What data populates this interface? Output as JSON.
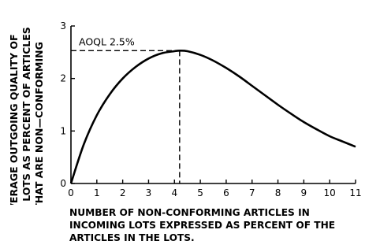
{
  "chart_data": {
    "type": "line",
    "title": "",
    "ylabel_lines": [
      "AVERAGE OUTGOING QUALITY OF",
      "ALL LOTS AS PERCENT OF ARTICLES",
      "THAT ARE NON—CONFORMING"
    ],
    "xlabel_lines": [
      "NUMBER OF NON-CONFORMING ARTICLES IN",
      "INCOMING LOTS EXPRESSED AS PERCENT OF THE",
      "ARTICLES IN THE LOTS."
    ],
    "xlim": [
      0,
      11
    ],
    "ylim": [
      0,
      3
    ],
    "xticks": [
      "0",
      "1",
      "2",
      "3",
      "4",
      "5",
      "6",
      "7",
      "8",
      "9",
      "10",
      "11"
    ],
    "yticks": [
      "0",
      "1",
      "2",
      "3"
    ],
    "grid": false,
    "annotation": {
      "text": "AOQL 2.5%",
      "x": 4.2,
      "y": 2.53
    },
    "series": [
      {
        "x": [
          0,
          0.5,
          1,
          1.5,
          2,
          2.5,
          3,
          3.5,
          4,
          4.2,
          4.5,
          5,
          5.5,
          6,
          6.5,
          7,
          7.5,
          8,
          8.5,
          9,
          9.5,
          10,
          10.5,
          11
        ],
        "y": [
          0,
          0.75,
          1.3,
          1.7,
          2.0,
          2.22,
          2.38,
          2.48,
          2.52,
          2.53,
          2.52,
          2.45,
          2.34,
          2.2,
          2.04,
          1.86,
          1.68,
          1.5,
          1.33,
          1.17,
          1.03,
          0.9,
          0.8,
          0.7
        ]
      }
    ]
  }
}
